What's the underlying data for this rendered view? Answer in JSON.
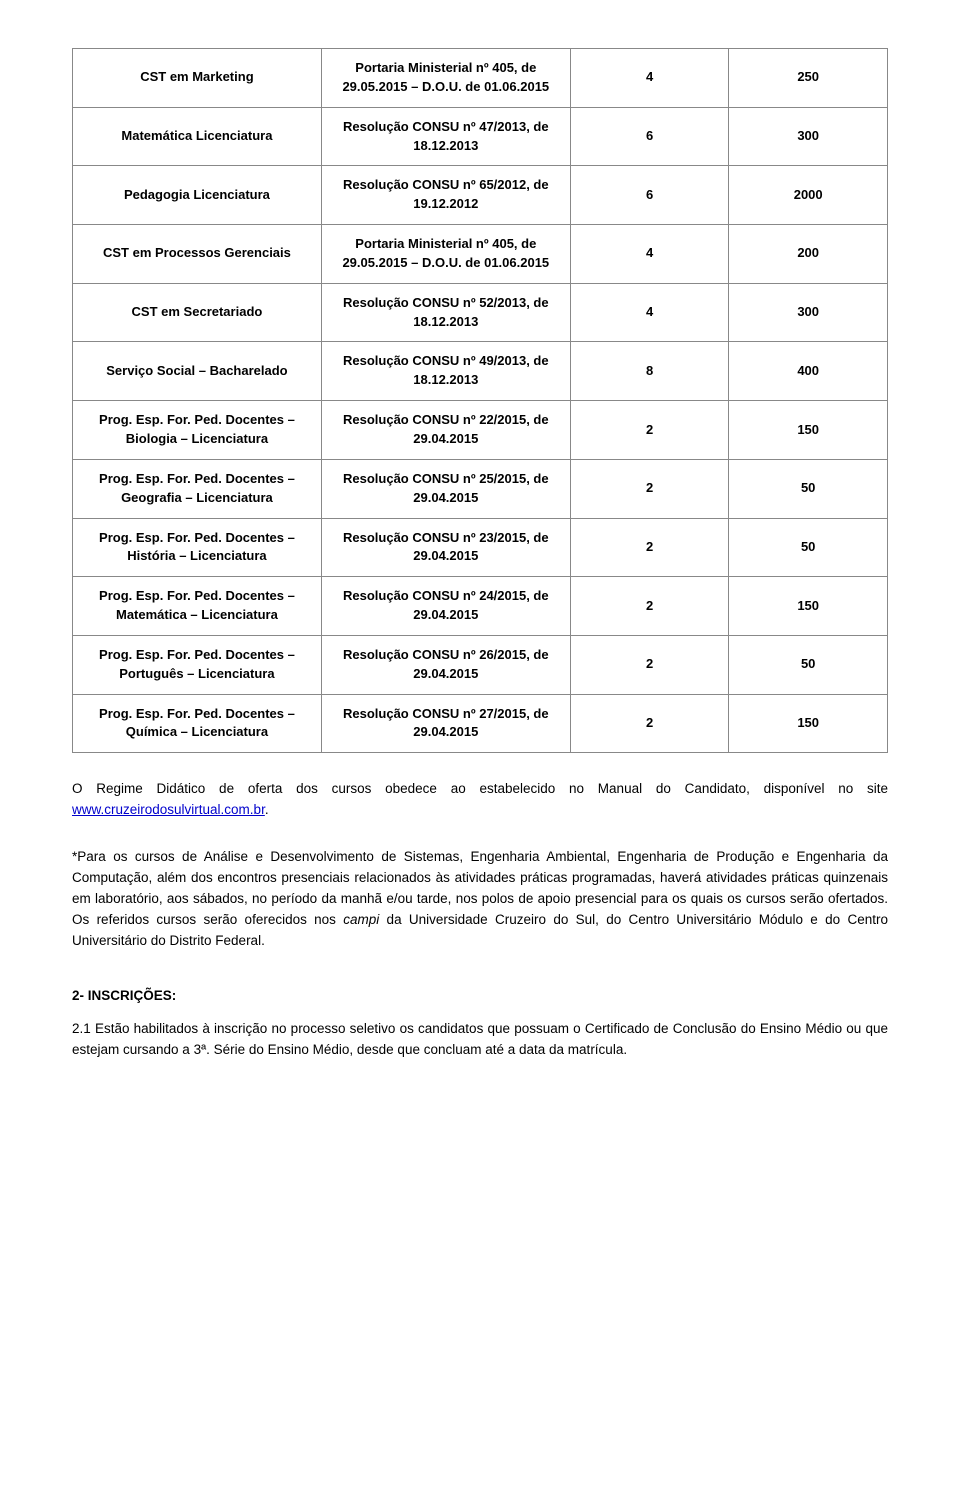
{
  "table": {
    "rows": [
      {
        "c1": "CST em Marketing",
        "c2": "Portaria Ministerial nº 405, de 29.05.2015 – D.O.U. de 01.06.2015",
        "c3": "4",
        "c4": "250"
      },
      {
        "c1": "Matemática Licenciatura",
        "c2": "Resolução CONSU nº 47/2013, de 18.12.2013",
        "c3": "6",
        "c4": "300"
      },
      {
        "c1": "Pedagogia Licenciatura",
        "c2": "Resolução CONSU nº 65/2012, de 19.12.2012",
        "c3": "6",
        "c4": "2000"
      },
      {
        "c1": "CST em Processos Gerenciais",
        "c2": "Portaria Ministerial nº 405, de 29.05.2015 – D.O.U. de 01.06.2015",
        "c3": "4",
        "c4": "200"
      },
      {
        "c1": "CST em Secretariado",
        "c2": "Resolução CONSU nº 52/2013, de 18.12.2013",
        "c3": "4",
        "c4": "300"
      },
      {
        "c1": "Serviço Social – Bacharelado",
        "c2": "Resolução CONSU nº 49/2013, de 18.12.2013",
        "c3": "8",
        "c4": "400"
      },
      {
        "c1": "Prog. Esp. For. Ped. Docentes – Biologia – Licenciatura",
        "c2": "Resolução CONSU nº 22/2015, de 29.04.2015",
        "c3": "2",
        "c4": "150"
      },
      {
        "c1": "Prog. Esp. For. Ped. Docentes – Geografia – Licenciatura",
        "c2": "Resolução CONSU nº 25/2015, de 29.04.2015",
        "c3": "2",
        "c4": "50"
      },
      {
        "c1": "Prog. Esp. For. Ped. Docentes – História – Licenciatura",
        "c2": "Resolução CONSU nº 23/2015, de 29.04.2015",
        "c3": "2",
        "c4": "50"
      },
      {
        "c1": "Prog. Esp. For. Ped. Docentes – Matemática – Licenciatura",
        "c2": "Resolução CONSU nº 24/2015, de 29.04.2015",
        "c3": "2",
        "c4": "150"
      },
      {
        "c1": "Prog. Esp. For. Ped. Docentes – Português – Licenciatura",
        "c2": "Resolução CONSU nº 26/2015, de 29.04.2015",
        "c3": "2",
        "c4": "50"
      },
      {
        "c1": "Prog. Esp. For. Ped. Docentes – Química – Licenciatura",
        "c2": "Resolução CONSU nº 27/2015, de 29.04.2015",
        "c3": "2",
        "c4": "150"
      }
    ]
  },
  "para1_a": "O Regime Didático de oferta dos cursos obedece ao estabelecido no Manual do Candidato, disponível no site ",
  "para1_link": "www.cruzeirodosulvirtual.com.br",
  "para1_b": ".",
  "para2_a": "*Para os cursos de Análise e Desenvolvimento de Sistemas, Engenharia Ambiental, Engenharia de Produção e Engenharia da Computação, além dos encontros presenciais relacionados às atividades práticas programadas, haverá atividades práticas quinzenais em laboratório, aos sábados, no período da manhã e/ou tarde, nos polos de apoio presencial para os quais os cursos serão ofertados. Os referidos cursos serão oferecidos nos ",
  "para2_em": "campi",
  "para2_b": " da Universidade Cruzeiro do Sul, do Centro Universitário Módulo e do Centro Universitário do Distrito Federal.",
  "section2_title": "2- INSCRIÇÕES:",
  "section2_para": "2.1 Estão habilitados à inscrição no processo seletivo os candidatos que possuam o Certificado de Conclusão do Ensino Médio ou que estejam cursando a 3ª. Série do Ensino Médio, desde que concluam até a data da matrícula."
}
